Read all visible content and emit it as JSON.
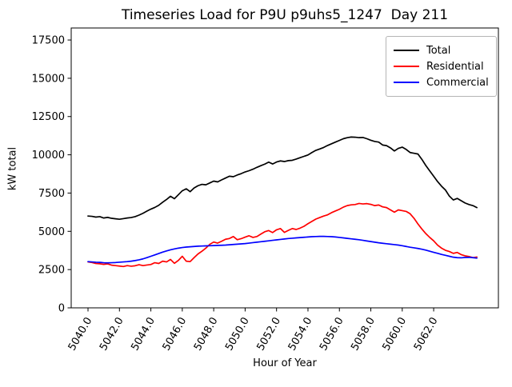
{
  "chart_data": {
    "type": "line",
    "title": "Timeseries Load for P9U p9uhs5_1247  Day 211",
    "xlabel": "Hour of Year",
    "ylabel": "kW total",
    "grid": false,
    "background": "#ffffff",
    "xlim": [
      5038.93,
      5066.12
    ],
    "ylim": [
      0,
      18286
    ],
    "xticks": [
      5040,
      5042,
      5044,
      5046,
      5048,
      5050,
      5052,
      5054,
      5056,
      5058,
      5060,
      5062
    ],
    "xtick_labels": [
      "5040.0",
      "5042.0",
      "5044.0",
      "5046.0",
      "5048.0",
      "5050.0",
      "5052.0",
      "5054.0",
      "5056.0",
      "5058.0",
      "5060.0",
      "5062.0"
    ],
    "xtick_rotation_deg": 60,
    "yticks": [
      0,
      2500,
      5000,
      7500,
      10000,
      12500,
      15000,
      17500
    ],
    "ytick_labels": [
      "0",
      "2500",
      "5000",
      "7500",
      "10000",
      "12500",
      "15000",
      "17500"
    ],
    "legend": {
      "position": "upper right",
      "entries": [
        "Total",
        "Residential",
        "Commercial"
      ]
    },
    "x_start": 5040.0,
    "x_step_hours": 0.25,
    "n_points": 100,
    "series": [
      {
        "name": "Total",
        "color": "#000000",
        "values": [
          6000,
          5980,
          5930,
          5960,
          5870,
          5910,
          5850,
          5820,
          5790,
          5830,
          5870,
          5900,
          5960,
          6060,
          6180,
          6320,
          6450,
          6560,
          6700,
          6900,
          7080,
          7290,
          7130,
          7390,
          7650,
          7780,
          7590,
          7830,
          7980,
          8070,
          8040,
          8160,
          8280,
          8230,
          8360,
          8480,
          8600,
          8570,
          8680,
          8770,
          8880,
          8960,
          9060,
          9180,
          9290,
          9390,
          9520,
          9400,
          9530,
          9600,
          9560,
          9620,
          9640,
          9720,
          9810,
          9900,
          9990,
          10150,
          10290,
          10380,
          10480,
          10610,
          10720,
          10830,
          10940,
          11050,
          11120,
          11160,
          11150,
          11120,
          11130,
          11050,
          10950,
          10870,
          10830,
          10640,
          10600,
          10450,
          10250,
          10420,
          10500,
          10350,
          10150,
          10100,
          10050,
          9700,
          9300,
          8950,
          8600,
          8250,
          7950,
          7700,
          7300,
          7050,
          7150,
          7000,
          6850,
          6750,
          6680,
          6550
        ]
      },
      {
        "name": "Residential",
        "color": "#ff0000",
        "values": [
          3000,
          2960,
          2900,
          2880,
          2840,
          2870,
          2790,
          2760,
          2730,
          2700,
          2760,
          2720,
          2750,
          2820,
          2760,
          2800,
          2830,
          2950,
          2900,
          3050,
          3000,
          3160,
          2910,
          3100,
          3370,
          3050,
          3020,
          3280,
          3520,
          3700,
          3900,
          4150,
          4300,
          4230,
          4350,
          4480,
          4530,
          4660,
          4450,
          4520,
          4620,
          4710,
          4600,
          4660,
          4820,
          4970,
          5050,
          4920,
          5100,
          5180,
          4930,
          5060,
          5180,
          5120,
          5210,
          5330,
          5500,
          5650,
          5800,
          5900,
          6000,
          6080,
          6220,
          6330,
          6440,
          6580,
          6680,
          6730,
          6750,
          6820,
          6790,
          6810,
          6760,
          6680,
          6720,
          6600,
          6550,
          6400,
          6250,
          6400,
          6350,
          6300,
          6150,
          5850,
          5480,
          5150,
          4850,
          4600,
          4380,
          4100,
          3900,
          3760,
          3680,
          3560,
          3620,
          3480,
          3400,
          3350,
          3280,
          3320
        ]
      },
      {
        "name": "Commercial",
        "color": "#0000ff",
        "values": [
          3020,
          3000,
          2980,
          2970,
          2950,
          2940,
          2950,
          2960,
          2980,
          3000,
          3020,
          3050,
          3090,
          3140,
          3200,
          3280,
          3370,
          3460,
          3550,
          3640,
          3720,
          3790,
          3850,
          3900,
          3940,
          3970,
          3990,
          4010,
          4030,
          4040,
          4050,
          4060,
          4070,
          4080,
          4090,
          4100,
          4120,
          4140,
          4160,
          4180,
          4200,
          4230,
          4260,
          4290,
          4320,
          4350,
          4380,
          4410,
          4440,
          4470,
          4500,
          4530,
          4550,
          4570,
          4590,
          4610,
          4630,
          4650,
          4660,
          4670,
          4670,
          4660,
          4650,
          4630,
          4600,
          4570,
          4540,
          4510,
          4480,
          4450,
          4410,
          4370,
          4330,
          4290,
          4250,
          4220,
          4190,
          4160,
          4130,
          4100,
          4060,
          4010,
          3960,
          3920,
          3880,
          3830,
          3770,
          3700,
          3630,
          3560,
          3490,
          3430,
          3370,
          3310,
          3280,
          3270,
          3290,
          3300,
          3280,
          3250
        ]
      }
    ]
  }
}
